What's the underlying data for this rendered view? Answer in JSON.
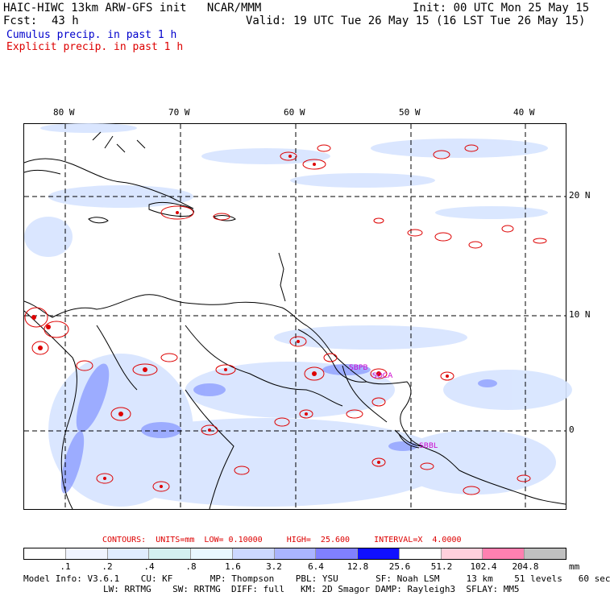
{
  "header": {
    "line1_left": "HAIC-HIWC 13km ARW-GFS init   NCAR/MMM",
    "line1_right": "Init: 00 UTC Mon 25 May 15",
    "fcst_label": "Fcst:",
    "fcst_value": "43 h",
    "valid": "Valid: 19 UTC Tue 26 May 15 (16 LST Tue 26 May 15)",
    "field1": "Cumulus precip. in past 1 h",
    "field2": "Explicit precip. in past 1 h"
  },
  "map": {
    "lon_labels": [
      "80 W",
      "70 W",
      "60 W",
      "50 W",
      "40 W"
    ],
    "lat_labels": [
      "20 N",
      "10 N",
      "0"
    ],
    "station_labels": [
      "SBPB",
      "SOCA",
      "SBBL"
    ],
    "colors": {
      "cumulus_light": "#c8dcff",
      "cumulus_mid": "#8899ff",
      "explicit": "#dd0000",
      "grid": "#000000",
      "station": "#cc00cc"
    }
  },
  "contours": {
    "text": "CONTOURS:  UNITS=mm  LOW= 0.10000     HIGH=  25.600     INTERVAL=X  4.0000"
  },
  "scale": {
    "colors": [
      "#ffffff",
      "#f0f4ff",
      "#e0ecff",
      "#d4f0f0",
      "#e8f8ff",
      "#ccd8ff",
      "#aab4ff",
      "#8080ff",
      "#1010ff",
      "#ffffff",
      "#ffd0dc",
      "#ff80b0",
      "#c0c0c0",
      "#404040",
      "#c0a0ff"
    ],
    "labels": [
      ".1",
      ".2",
      ".4",
      ".8",
      "1.6",
      "3.2",
      "6.4",
      "12.8",
      "25.6",
      "51.2",
      "102.4",
      "204.8"
    ],
    "units": "mm"
  },
  "model_info": {
    "line1": "Model Info: V3.6.1    CU: KF       MP: Thompson    PBL: YSU       SF: Noah LSM     13 km    51 levels   60 sec",
    "line2": "LW: RRTMG    SW: RRTMG  DIFF: full   KM: 2D Smagor DAMP: Rayleigh3  SFLAY: MM5"
  }
}
